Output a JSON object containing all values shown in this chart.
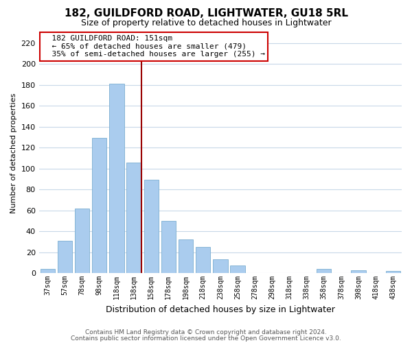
{
  "title": "182, GUILDFORD ROAD, LIGHTWATER, GU18 5RL",
  "subtitle": "Size of property relative to detached houses in Lightwater",
  "xlabel": "Distribution of detached houses by size in Lightwater",
  "ylabel": "Number of detached properties",
  "bar_labels": [
    "37sqm",
    "57sqm",
    "78sqm",
    "98sqm",
    "118sqm",
    "138sqm",
    "158sqm",
    "178sqm",
    "198sqm",
    "218sqm",
    "238sqm",
    "258sqm",
    "278sqm",
    "298sqm",
    "318sqm",
    "338sqm",
    "358sqm",
    "378sqm",
    "398sqm",
    "418sqm",
    "438sqm"
  ],
  "bar_values": [
    4,
    31,
    62,
    129,
    181,
    106,
    89,
    50,
    32,
    25,
    13,
    7,
    0,
    0,
    0,
    0,
    4,
    0,
    3,
    0,
    2
  ],
  "bar_color": "#aaccee",
  "bar_edge_color": "#7aaed0",
  "highlight_line_index": 5,
  "highlight_line_color": "#990000",
  "ylim": [
    0,
    230
  ],
  "yticks": [
    0,
    20,
    40,
    60,
    80,
    100,
    120,
    140,
    160,
    180,
    200,
    220
  ],
  "annotation_title": "182 GUILDFORD ROAD: 151sqm",
  "annotation_line1": "← 65% of detached houses are smaller (479)",
  "annotation_line2": "35% of semi-detached houses are larger (255) →",
  "annotation_box_color": "#ffffff",
  "annotation_box_edge": "#cc0000",
  "footnote1": "Contains HM Land Registry data © Crown copyright and database right 2024.",
  "footnote2": "Contains public sector information licensed under the Open Government Licence v3.0.",
  "bg_color": "#ffffff",
  "grid_color": "#c8d8e8",
  "title_fontsize": 11,
  "subtitle_fontsize": 9,
  "xlabel_fontsize": 9,
  "ylabel_fontsize": 8,
  "tick_fontsize": 8,
  "xtick_fontsize": 7,
  "annot_fontsize": 8
}
